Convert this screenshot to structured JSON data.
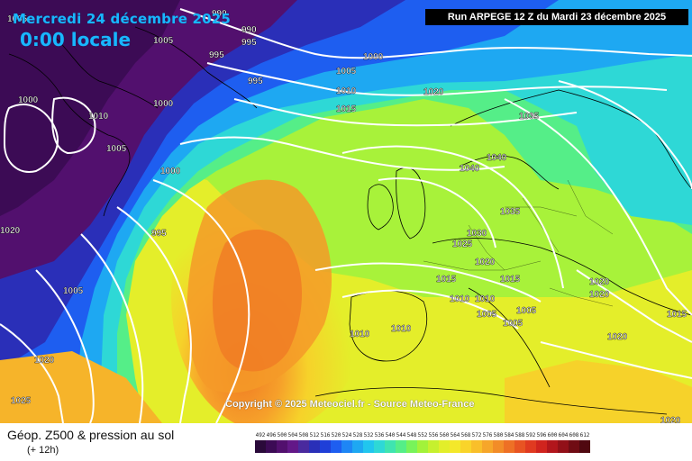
{
  "header": {
    "date_label": "Mercredi 24 décembre 2025",
    "time_label": "0:00 locale",
    "run_label": "Run ARPEGE 12 Z du Mardi 23 décembre 2025"
  },
  "copyright": "Copyright © 2025 Meteociel.fr - Source Meteo-France",
  "parameter": {
    "title": "Géop. Z500 & pression au sol",
    "subtitle": "(+ 12h)"
  },
  "legend": {
    "values": [
      "492",
      "496",
      "500",
      "504",
      "508",
      "512",
      "516",
      "520",
      "524",
      "528",
      "532",
      "536",
      "540",
      "544",
      "548",
      "552",
      "556",
      "560",
      "564",
      "568",
      "572",
      "576",
      "580",
      "584",
      "588",
      "592",
      "596",
      "600",
      "604",
      "608",
      "612"
    ],
    "colors": [
      "#2a0a3a",
      "#3c0b55",
      "#52106e",
      "#631888",
      "#4a2a9e",
      "#2a2fb8",
      "#1f3fd8",
      "#1e5ef0",
      "#1e86f5",
      "#1ea8f2",
      "#21c6ee",
      "#2ed8d6",
      "#3fe4b0",
      "#55ee88",
      "#78f35a",
      "#a2f23a",
      "#c6f02e",
      "#e2ee2a",
      "#f4e82a",
      "#f9d42a",
      "#f9bf2a",
      "#f6a62a",
      "#f28c28",
      "#ee7025",
      "#e85422",
      "#e03a20",
      "#d0241e",
      "#b2161c",
      "#921018",
      "#700c14",
      "#500810"
    ]
  },
  "map_colors": {
    "sea_deep": "#2a0a3a",
    "contour_line": "#ffffff",
    "coastline": "#000000"
  },
  "pressure_labels": [
    {
      "text": "1005"
    },
    {
      "text": "1005"
    },
    {
      "text": "990"
    },
    {
      "text": "990"
    },
    {
      "text": "995"
    },
    {
      "text": "995"
    },
    {
      "text": "995"
    },
    {
      "text": "1000"
    },
    {
      "text": "1005"
    },
    {
      "text": "1010"
    },
    {
      "text": "1015"
    },
    {
      "text": "1020"
    },
    {
      "text": "1000"
    },
    {
      "text": "1010"
    },
    {
      "text": "1000"
    },
    {
      "text": "1005"
    },
    {
      "text": "1000"
    },
    {
      "text": "995"
    },
    {
      "text": "1020"
    },
    {
      "text": "1005"
    },
    {
      "text": "1020"
    },
    {
      "text": "1025"
    },
    {
      "text": "1035"
    },
    {
      "text": "1040"
    },
    {
      "text": "1040"
    },
    {
      "text": "1035"
    },
    {
      "text": "1030"
    },
    {
      "text": "1025"
    },
    {
      "text": "1020"
    },
    {
      "text": "1015"
    },
    {
      "text": "1010"
    },
    {
      "text": "1010"
    },
    {
      "text": "1015"
    },
    {
      "text": "1005"
    },
    {
      "text": "1005"
    },
    {
      "text": "1005"
    },
    {
      "text": "1010"
    },
    {
      "text": "1010"
    },
    {
      "text": "1020"
    },
    {
      "text": "1020"
    },
    {
      "text": "1020"
    },
    {
      "text": "1020"
    },
    {
      "text": "1015"
    }
  ]
}
